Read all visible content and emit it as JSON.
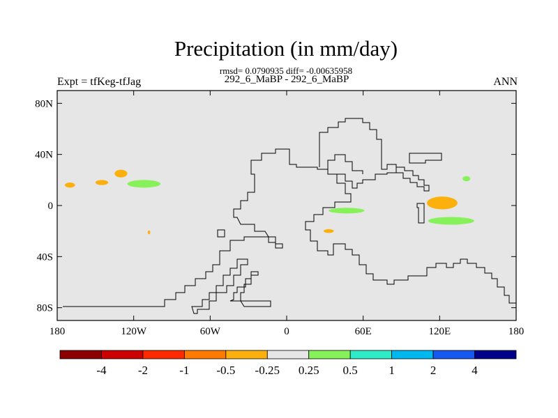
{
  "header": {
    "title": "Precipitation (in mm/day)",
    "stats": "rmsd= 0.0790935 diff= -0.00635958",
    "subtitle": "292_6_MaBP - 292_6_MaBP",
    "left_label": "Expt = tfKeg-tfJag",
    "right_label": "ANN"
  },
  "map": {
    "projection": "cylindrical equidistant",
    "lon_range": [
      -180,
      180
    ],
    "lat_range": [
      -90,
      90
    ],
    "background_color": "#e6e6e6",
    "y_ticks": [
      {
        "lat": 80,
        "label": "80N"
      },
      {
        "lat": 40,
        "label": "40N"
      },
      {
        "lat": 0,
        "label": "0"
      },
      {
        "lat": -40,
        "label": "40S"
      },
      {
        "lat": -80,
        "label": "80S"
      }
    ],
    "x_ticks": [
      {
        "lon": -180,
        "label": "180"
      },
      {
        "lon": -120,
        "label": "120W"
      },
      {
        "lon": -60,
        "label": "60W"
      },
      {
        "lon": 0,
        "label": "0"
      },
      {
        "lon": 60,
        "label": "60E"
      },
      {
        "lon": 120,
        "label": "120E"
      },
      {
        "lon": 180,
        "label": "180"
      }
    ],
    "anomaly_patches": [
      {
        "name": "patch-central-pacific-north",
        "lon": -130,
        "lat": 25,
        "rx": 5,
        "ry": 3,
        "color": "#fcb00e"
      },
      {
        "name": "patch-central-pacific-mid",
        "lon": -145,
        "lat": 18,
        "rx": 5,
        "ry": 2,
        "color": "#fcb00e"
      },
      {
        "name": "patch-dateline-north",
        "lon": -170,
        "lat": 16,
        "rx": 4,
        "ry": 2,
        "color": "#fcb00e"
      },
      {
        "name": "patch-east-pacific-wet",
        "lon": -112,
        "lat": 17,
        "rx": 13,
        "ry": 3,
        "color": "#86f159"
      },
      {
        "name": "patch-south-pacific-small",
        "lon": -108,
        "lat": -21,
        "rx": 1,
        "ry": 1.5,
        "color": "#fcb00e"
      },
      {
        "name": "patch-indian-ocean-wet",
        "lon": 47,
        "lat": -4,
        "rx": 14,
        "ry": 2.2,
        "color": "#86f159"
      },
      {
        "name": "patch-indian-ocean-dry",
        "lon": 33,
        "lat": -20,
        "rx": 4,
        "ry": 1.5,
        "color": "#fcb00e"
      },
      {
        "name": "patch-west-pacific-dry",
        "lon": 122,
        "lat": 2,
        "rx": 12,
        "ry": 5,
        "color": "#fcb00e"
      },
      {
        "name": "patch-west-pacific-wet",
        "lon": 129,
        "lat": -12,
        "rx": 18,
        "ry": 3,
        "color": "#86f159"
      },
      {
        "name": "patch-north-pacific-wet",
        "lon": 141,
        "lat": 21,
        "rx": 3,
        "ry": 2,
        "color": "#86f159"
      }
    ]
  },
  "colorbar": {
    "colors": [
      "#8b0000",
      "#cc0000",
      "#ff2a00",
      "#ff7a00",
      "#fcb00e",
      "#e6e6e6",
      "#86f159",
      "#2eecc8",
      "#00b8f0",
      "#1758f0",
      "#00008b"
    ],
    "labels": [
      "-4",
      "-2",
      "-1",
      "-0.5",
      "-0.25",
      "0.25",
      "0.5",
      "1",
      "2",
      "4"
    ]
  }
}
